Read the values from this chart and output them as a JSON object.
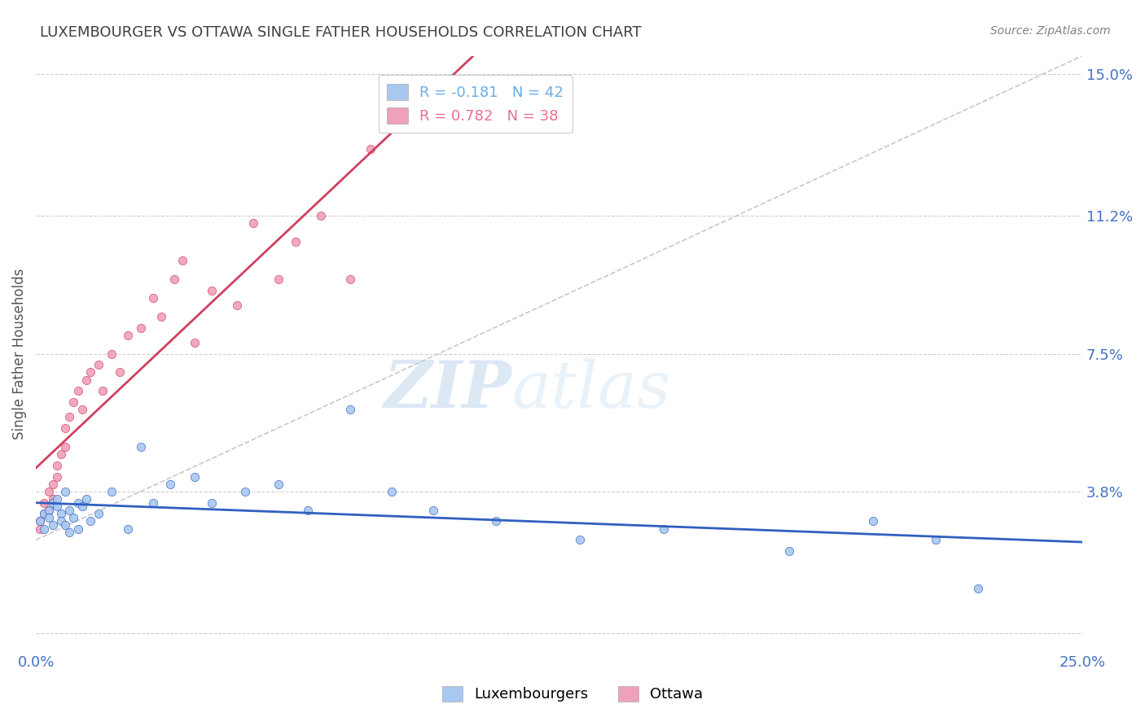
{
  "title": "LUXEMBOURGER VS OTTAWA SINGLE FATHER HOUSEHOLDS CORRELATION CHART",
  "source_text": "Source: ZipAtlas.com",
  "ylabel": "Single Father Households",
  "xlim": [
    0.0,
    0.25
  ],
  "ylim": [
    -0.005,
    0.155
  ],
  "yticks": [
    0.0,
    0.038,
    0.075,
    0.112,
    0.15
  ],
  "yticklabels": [
    "",
    "3.8%",
    "7.5%",
    "11.2%",
    "15.0%"
  ],
  "xticks": [
    0.0,
    0.05,
    0.1,
    0.15,
    0.2,
    0.25
  ],
  "xticklabels": [
    "0.0%",
    "",
    "",
    "",
    "",
    "25.0%"
  ],
  "watermark_zip": "ZIP",
  "watermark_atlas": "atlas",
  "legend_entries": [
    {
      "label": "R = -0.181   N = 42",
      "color": "#6aaee8"
    },
    {
      "label": "R = 0.782   N = 38",
      "color": "#e87090"
    }
  ],
  "lux_color": "#a8c8f0",
  "ottawa_color": "#f0a0b8",
  "lux_line_color": "#3060c0",
  "ottawa_line_color": "#d04060",
  "ref_line_color": "#c8c8c8",
  "background_color": "#ffffff",
  "grid_color": "#d0d0d0",
  "axis_color": "#4472c4",
  "title_color": "#404040",
  "source_color": "#808080",
  "lux_points_x": [
    0.001,
    0.002,
    0.002,
    0.003,
    0.003,
    0.004,
    0.004,
    0.005,
    0.005,
    0.006,
    0.006,
    0.007,
    0.007,
    0.008,
    0.008,
    0.009,
    0.01,
    0.01,
    0.011,
    0.012,
    0.013,
    0.015,
    0.018,
    0.022,
    0.025,
    0.028,
    0.032,
    0.038,
    0.042,
    0.05,
    0.058,
    0.065,
    0.075,
    0.085,
    0.095,
    0.11,
    0.13,
    0.15,
    0.18,
    0.2,
    0.215,
    0.225
  ],
  "lux_points_y": [
    0.03,
    0.032,
    0.028,
    0.033,
    0.031,
    0.035,
    0.029,
    0.034,
    0.036,
    0.032,
    0.03,
    0.038,
    0.029,
    0.033,
    0.027,
    0.031,
    0.035,
    0.028,
    0.034,
    0.036,
    0.03,
    0.032,
    0.038,
    0.028,
    0.05,
    0.035,
    0.04,
    0.042,
    0.035,
    0.038,
    0.04,
    0.033,
    0.06,
    0.038,
    0.033,
    0.03,
    0.025,
    0.028,
    0.022,
    0.03,
    0.025,
    0.012
  ],
  "ottawa_points_x": [
    0.001,
    0.001,
    0.002,
    0.002,
    0.003,
    0.003,
    0.004,
    0.004,
    0.005,
    0.005,
    0.006,
    0.007,
    0.007,
    0.008,
    0.009,
    0.01,
    0.011,
    0.012,
    0.013,
    0.015,
    0.016,
    0.018,
    0.02,
    0.022,
    0.025,
    0.028,
    0.03,
    0.033,
    0.035,
    0.038,
    0.042,
    0.048,
    0.052,
    0.058,
    0.062,
    0.068,
    0.075,
    0.08
  ],
  "ottawa_points_y": [
    0.03,
    0.028,
    0.032,
    0.035,
    0.033,
    0.038,
    0.04,
    0.036,
    0.042,
    0.045,
    0.048,
    0.05,
    0.055,
    0.058,
    0.062,
    0.065,
    0.06,
    0.068,
    0.07,
    0.072,
    0.065,
    0.075,
    0.07,
    0.08,
    0.082,
    0.09,
    0.085,
    0.095,
    0.1,
    0.078,
    0.092,
    0.088,
    0.11,
    0.095,
    0.105,
    0.112,
    0.095,
    0.13
  ]
}
